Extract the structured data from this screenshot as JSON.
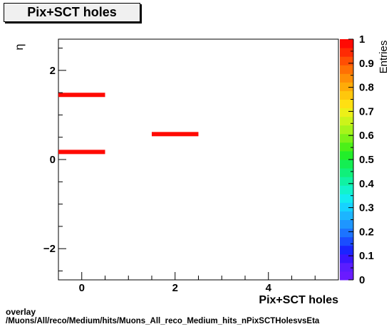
{
  "chart_data": {
    "type": "heatmap",
    "title": "Pix+SCT holes",
    "xlabel": "Pix+SCT holes",
    "ylabel": "η",
    "zlabel": "Entries",
    "xlim": [
      -0.5,
      5.5
    ],
    "ylim": [
      -2.7,
      2.7
    ],
    "zlim": [
      0,
      1
    ],
    "x_ticks": [
      0,
      2,
      4
    ],
    "y_ticks": [
      -2,
      0,
      2
    ],
    "z_ticks": [
      0,
      0.1,
      0.2,
      0.3,
      0.4,
      0.5,
      0.6,
      0.7,
      0.8,
      0.9,
      1
    ],
    "cells": [
      {
        "x": [
          -0.5,
          0.5
        ],
        "y": 1.45,
        "value": 1
      },
      {
        "x": [
          -0.5,
          0.5
        ],
        "y": 0.17,
        "value": 1
      },
      {
        "x": [
          1.5,
          2.5
        ],
        "y": 0.57,
        "value": 1
      }
    ],
    "palette": [
      "#6a1bff",
      "#5a1dff",
      "#3a16ff",
      "#1a24ff",
      "#1a4dff",
      "#1c73ff",
      "#1e96ff",
      "#1cb5ff",
      "#16d3ff",
      "#14ecf0",
      "#12f3cc",
      "#10f2a3",
      "#10f07a",
      "#14ee52",
      "#22ee2a",
      "#4cf018",
      "#7cf218",
      "#a7f41a",
      "#ccf41a",
      "#ecf018",
      "#ffe012",
      "#ffc70c",
      "#ffab08",
      "#ff8f06",
      "#ff7004",
      "#ff4e04",
      "#ff2a04",
      "#ff0a04"
    ],
    "grid": false
  },
  "footer": {
    "line1": "overlay",
    "line2": "/Muons/All/reco/Medium/hits/Muons_All_reco_Medium_hits_nPixSCTHolesvsEta"
  }
}
